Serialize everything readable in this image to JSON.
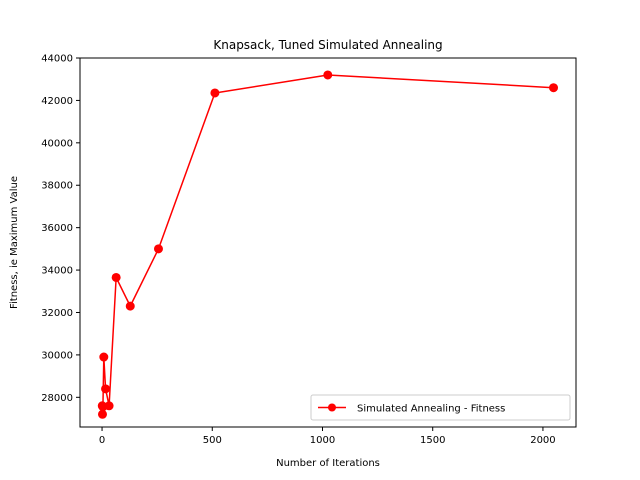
{
  "chart_data": {
    "type": "line",
    "title": "Knapsack, Tuned Simulated Annealing",
    "xlabel": "Number of Iterations",
    "ylabel": "Fitness, ie Maximum Value",
    "xlim": [
      -100,
      2150
    ],
    "ylim": [
      26600,
      44000
    ],
    "x_ticks": [
      0,
      500,
      1000,
      1500,
      2000
    ],
    "y_ticks": [
      28000,
      30000,
      32000,
      34000,
      36000,
      38000,
      40000,
      42000,
      44000
    ],
    "grid": false,
    "legend_position": "lower right",
    "series": [
      {
        "name": "Simulated Annealing - Fitness",
        "color": "#ff0000",
        "marker": "circle",
        "x": [
          1,
          2,
          4,
          8,
          16,
          32,
          64,
          128,
          256,
          512,
          1024,
          2048
        ],
        "y": [
          27600,
          27200,
          27550,
          29900,
          28400,
          27600,
          33650,
          32300,
          35000,
          42350,
          43200,
          42600
        ]
      }
    ]
  }
}
